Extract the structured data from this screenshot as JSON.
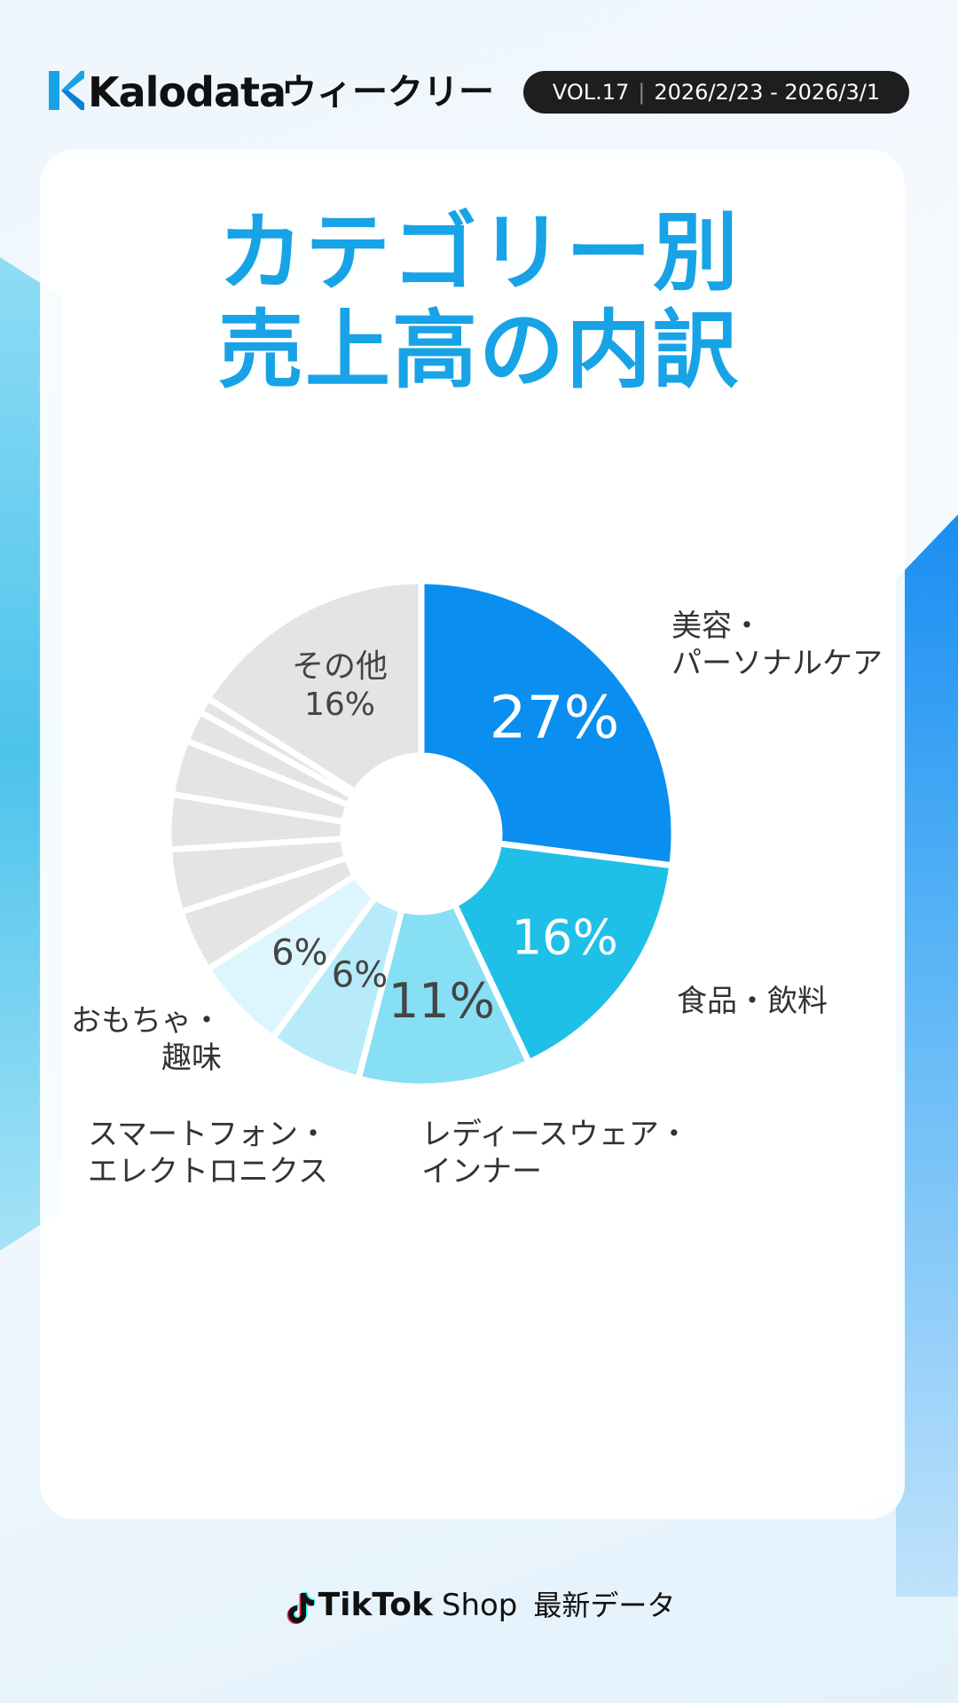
{
  "header": {
    "brand": "Kalodata",
    "weekly": "ウィークリー",
    "vol": "VOL.17",
    "date_range": "2026/2/23 - 2026/3/1"
  },
  "title": {
    "line1": "カテゴリー別",
    "line2": "売上高の内訳"
  },
  "colors": {
    "accent": "#17a3e6",
    "beauty": "#0a8ff0",
    "food": "#1fc0e8",
    "ladies": "#87dff4",
    "smartphone": "#b8ebf9",
    "toys": "#ddf5fc",
    "others": "#e4e4e4"
  },
  "chart_data": {
    "type": "pie",
    "donut": true,
    "slices": [
      {
        "label": "美容・パーソナルケア",
        "value": 27,
        "value_label": "27%"
      },
      {
        "label": "食品・飲料",
        "value": 16,
        "value_label": "16%"
      },
      {
        "label": "レディースウェア・インナー",
        "value": 11,
        "value_label": "11%"
      },
      {
        "label": "スマートフォン・エレクトロニクス",
        "value": 6,
        "value_label": "6%"
      },
      {
        "label": "おもちゃ・趣味",
        "value": 6,
        "value_label": "6%"
      },
      {
        "label": "",
        "value": 4
      },
      {
        "label": "",
        "value": 4
      },
      {
        "label": "",
        "value": 3.5
      },
      {
        "label": "",
        "value": 3.5
      },
      {
        "label": "",
        "value": 2
      },
      {
        "label": "",
        "value": 1
      },
      {
        "label": "その他",
        "value": 16,
        "value_label": "16%"
      }
    ],
    "labels": {
      "beauty_line1": "美容・",
      "beauty_line2": "パーソナルケア",
      "food": "食品・飲料",
      "ladies_line1": "レディースウェア・",
      "ladies_line2": "インナー",
      "smartphone_line1": "スマートフォン・",
      "smartphone_line2": "エレクトロニクス",
      "toys_line1": "おもちゃ・",
      "toys_line2": "趣味",
      "others_line1": "その他",
      "others_line2": "16%"
    }
  },
  "footer": {
    "brand": "TikTok",
    "shop": "Shop",
    "latest": "最新データ"
  }
}
